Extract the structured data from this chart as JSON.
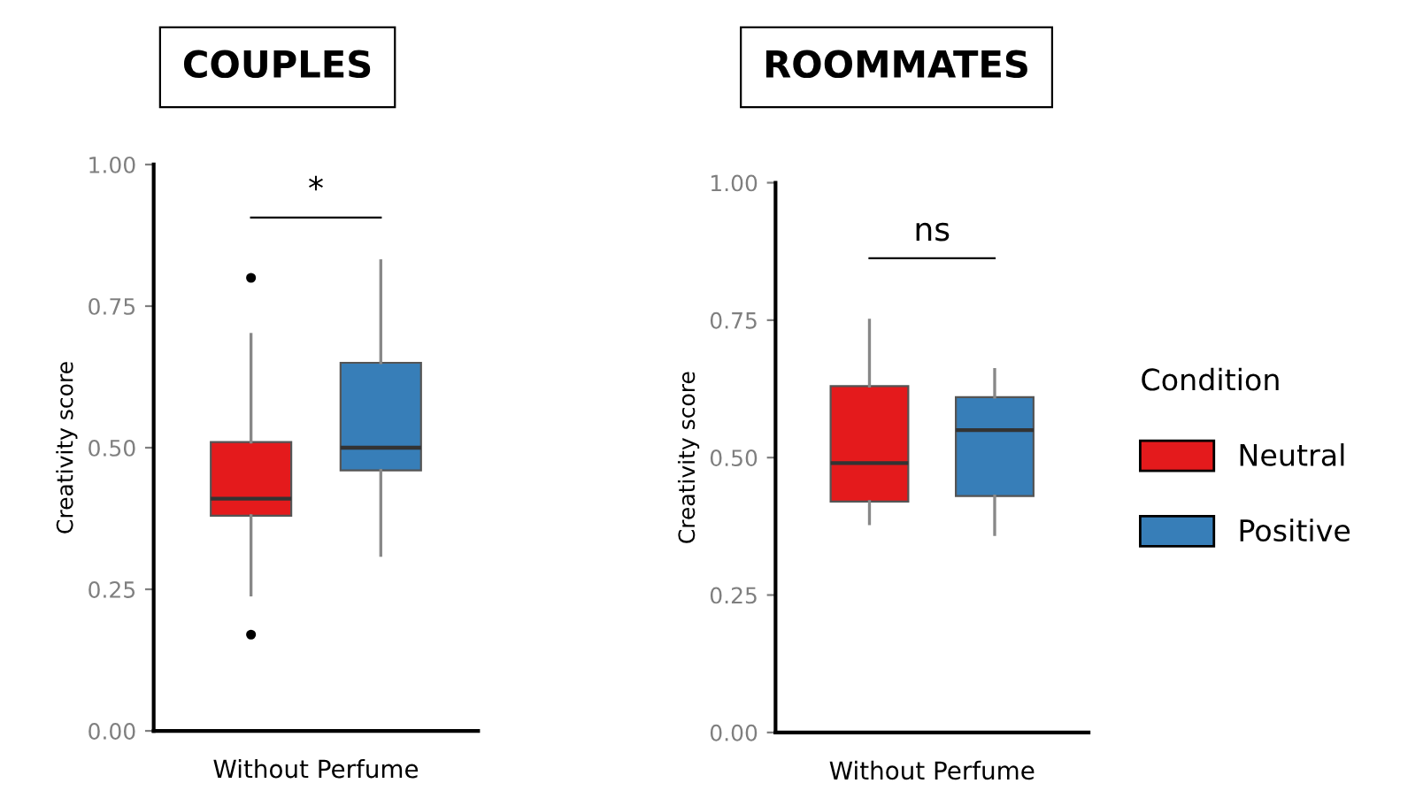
{
  "chart_data": [
    {
      "type": "box",
      "title": "COUPLES",
      "ylabel": "Creativity score",
      "xlabel": "Without Perfume",
      "categories": [
        null,
        null
      ],
      "series": [
        {
          "color": "#e41a1c",
          "boxes": [
            {
              "low": 0.24,
              "q1": 0.38,
              "median": 0.41,
              "q3": 0.51,
              "high": 0.7,
              "outliers": [
                0.8,
                0.17
              ]
            },
            null
          ]
        },
        {
          "color": "#377eb8",
          "boxes": [
            null,
            {
              "low": 0.31,
              "q1": 0.46,
              "median": 0.5,
              "q3": 0.65,
              "high": 0.83
            }
          ]
        }
      ],
      "ylim": [
        0,
        1
      ],
      "yticks": [
        {
          "value": 0,
          "label": "0.00"
        },
        {
          "value": 0.25,
          "label": "0.25"
        },
        {
          "value": 0.5,
          "label": "0.50"
        },
        {
          "value": 0.75,
          "label": "0.75"
        },
        {
          "value": 1,
          "label": "1.00"
        }
      ],
      "annotations": [
        "*"
      ],
      "grid": false
    },
    {
      "type": "box",
      "title": "ROOMMATES",
      "ylabel": "Creativity score",
      "xlabel": "Without Perfume",
      "categories": [
        null,
        null
      ],
      "legend_title": "Condition",
      "series": [
        {
          "name": "Neutral",
          "color": "#e41a1c",
          "boxes": [
            {
              "low": 0.38,
              "q1": 0.42,
              "median": 0.49,
              "q3": 0.63,
              "high": 0.75
            },
            null
          ]
        },
        {
          "name": "Positive",
          "color": "#377eb8",
          "boxes": [
            null,
            {
              "low": 0.36,
              "q1": 0.43,
              "median": 0.55,
              "q3": 0.61,
              "high": 0.66
            }
          ]
        }
      ],
      "ylim": [
        0,
        1
      ],
      "yticks": [
        {
          "value": 0,
          "label": "0.00"
        },
        {
          "value": 0.25,
          "label": "0.25"
        },
        {
          "value": 0.5,
          "label": "0.50"
        },
        {
          "value": 0.75,
          "label": "0.75"
        },
        {
          "value": 1,
          "label": "1.00"
        }
      ],
      "annotations": [
        "ns"
      ],
      "grid": false,
      "legend": "right"
    }
  ]
}
